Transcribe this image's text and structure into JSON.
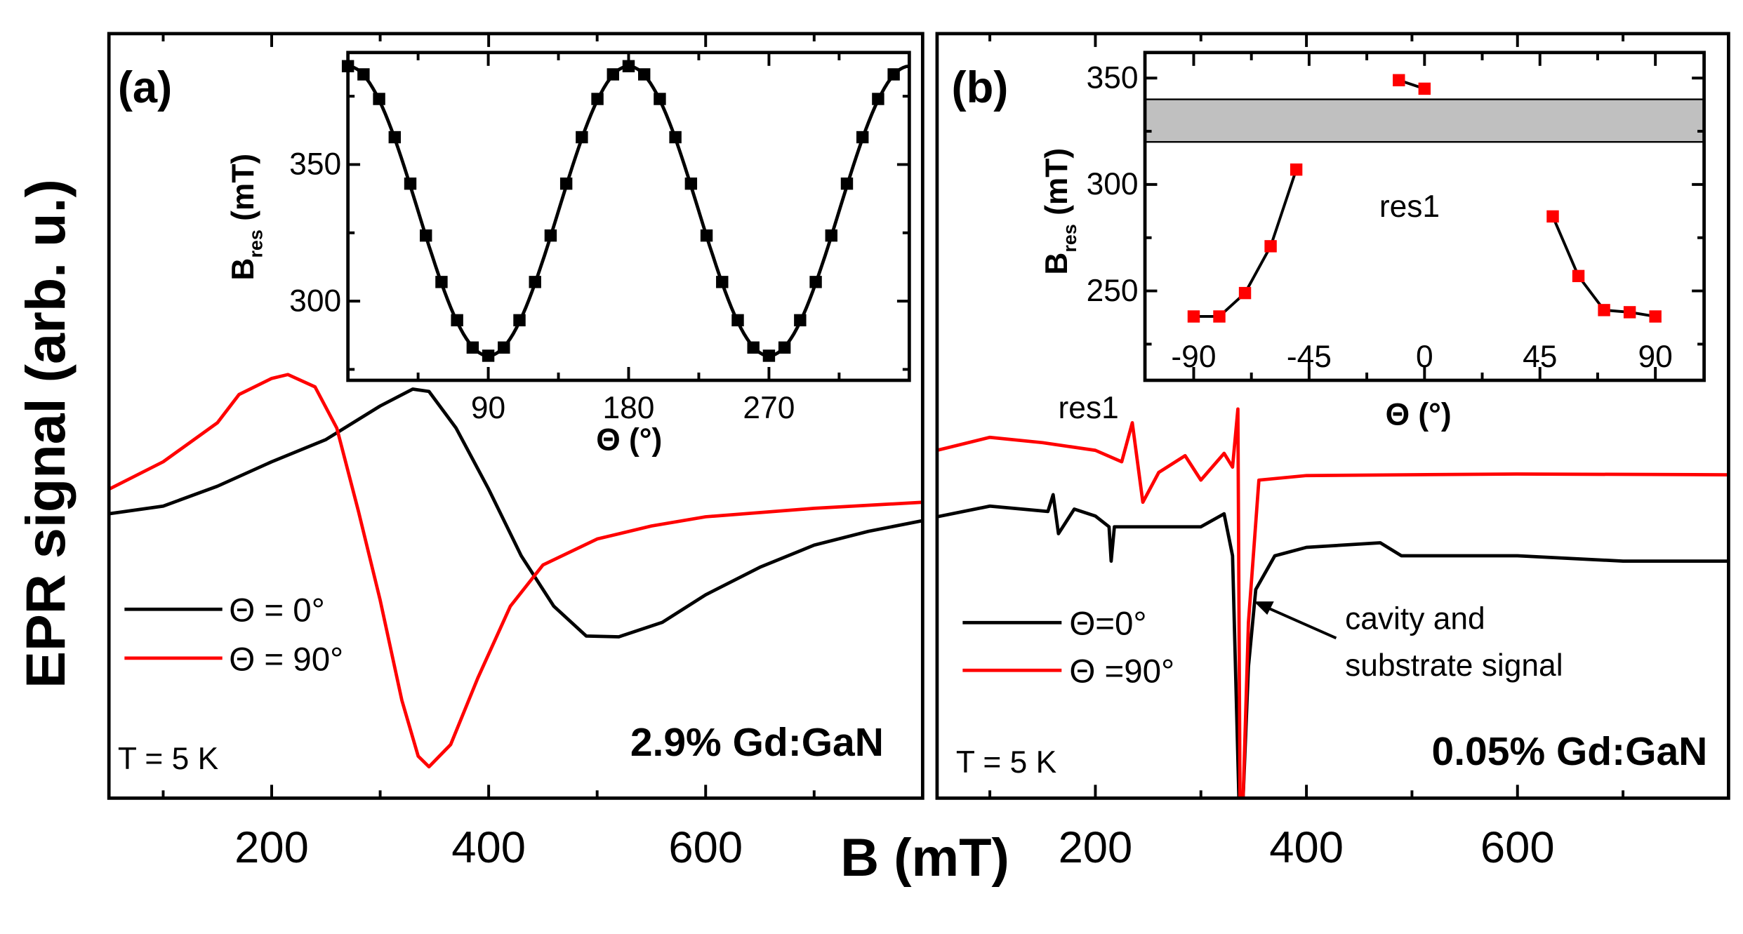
{
  "figure": {
    "ylabel": "EPR signal (arb. u.)",
    "xlabel": "B (mT)"
  },
  "chart_data": [
    {
      "id": "a-main",
      "type": "line",
      "panel_label": "(a)",
      "xlabel": "B (mT)",
      "ylabel": "EPR signal (arb. u.)",
      "xlim": [
        50,
        800
      ],
      "ylim": [
        0,
        100
      ],
      "xticks": [
        200,
        400,
        600
      ],
      "xminor": [
        100,
        300,
        500,
        700
      ],
      "annotations": {
        "temperature": "T = 5 K",
        "sample": "2.9% Gd:GaN"
      },
      "legend_position": "lower-left",
      "series": [
        {
          "name": "Θ = 0°",
          "color": "#000000",
          "x": [
            50,
            100,
            150,
            200,
            250,
            300,
            330,
            345,
            370,
            400,
            430,
            460,
            490,
            520,
            560,
            600,
            650,
            700,
            750,
            800
          ],
          "y": [
            37.2,
            38.2,
            40.8,
            44.0,
            46.9,
            51.3,
            53.5,
            53.2,
            48.4,
            40.4,
            31.7,
            25.1,
            21.2,
            21.1,
            23.0,
            26.6,
            30.2,
            33.1,
            34.9,
            36.3
          ]
        },
        {
          "name": "Θ = 90°",
          "color": "#ff0000",
          "x": [
            50,
            100,
            150,
            170,
            200,
            215,
            240,
            260,
            280,
            300,
            320,
            335,
            345,
            365,
            390,
            420,
            450,
            500,
            550,
            600,
            700,
            800
          ],
          "y": [
            40.4,
            44.0,
            49.1,
            52.8,
            54.9,
            55.4,
            53.8,
            48.4,
            37.5,
            25.9,
            12.8,
            5.5,
            4.1,
            7.0,
            15.7,
            25.1,
            30.5,
            33.9,
            35.6,
            36.8,
            37.9,
            38.7
          ]
        }
      ]
    },
    {
      "id": "a-inset",
      "type": "scatter",
      "xlabel": "Θ (°)",
      "ylabel_main": "B",
      "ylabel_sub": "res",
      "ylabel_unit": " (mT)",
      "xlim": [
        0,
        360
      ],
      "ylim": [
        271,
        391
      ],
      "xticks": [
        90,
        180,
        270
      ],
      "xminor": [
        45,
        135,
        225,
        315
      ],
      "yticks": [
        300,
        350
      ],
      "yminor": [
        275,
        325,
        375
      ],
      "fit": {
        "model": "B = 333 + 53·cos(2Θ)",
        "color": "#000000"
      },
      "points": {
        "x": [
          0,
          10,
          20,
          30,
          40,
          50,
          60,
          70,
          80,
          90,
          100,
          110,
          120,
          130,
          140,
          150,
          160,
          170,
          180,
          190,
          200,
          210,
          220,
          230,
          240,
          250,
          260,
          270,
          280,
          290,
          300,
          310,
          320,
          330,
          340,
          350
        ],
        "y": [
          386,
          383,
          374,
          360,
          343,
          324,
          307,
          293,
          283,
          280,
          283,
          293,
          307,
          324,
          343,
          360,
          374,
          383,
          386,
          383,
          374,
          360,
          343,
          324,
          307,
          293,
          283,
          280,
          283,
          293,
          307,
          324,
          343,
          360,
          374,
          383
        ]
      }
    },
    {
      "id": "b-main",
      "type": "line",
      "panel_label": "(b)",
      "xlabel": "B (mT)",
      "xlim": [
        50,
        800
      ],
      "ylim": [
        0,
        100
      ],
      "xticks": [
        200,
        400,
        600
      ],
      "xminor": [
        100,
        300,
        500,
        700
      ],
      "annotations": {
        "temperature": "T = 5 K",
        "sample": "0.05% Gd:GaN",
        "res_label": "res1",
        "arrow_label_1": "cavity and",
        "arrow_label_2": "substrate signal"
      },
      "legend_position": "lower-left",
      "series": [
        {
          "name": "Θ=0°",
          "color": "#000000",
          "x": [
            50,
            100,
            155,
            160,
            165,
            180,
            200,
            213,
            215,
            218,
            300,
            322,
            330,
            336,
            340,
            345,
            352,
            370,
            400,
            470,
            490,
            600,
            700,
            800
          ],
          "y": [
            36.8,
            38.2,
            37.5,
            39.7,
            34.6,
            37.8,
            36.9,
            35.5,
            31.0,
            35.5,
            35.5,
            37.2,
            31.7,
            0,
            0,
            17.2,
            27.3,
            31.7,
            32.8,
            33.4,
            31.7,
            31.7,
            31.0,
            31.0
          ]
        },
        {
          "name": "Θ =90°",
          "color": "#ff0000",
          "x": [
            50,
            100,
            150,
            200,
            225,
            235,
            245,
            260,
            285,
            300,
            322,
            330,
            335,
            337,
            340,
            345,
            355,
            400,
            600,
            800
          ],
          "y": [
            45.5,
            47.2,
            46.5,
            45.5,
            44.0,
            49.1,
            38.7,
            42.6,
            44.8,
            41.6,
            45.1,
            43.3,
            50.9,
            0,
            0,
            23,
            41.6,
            42.2,
            42.4,
            42.3
          ]
        }
      ]
    },
    {
      "id": "b-inset",
      "type": "scatter",
      "xlabel": "Θ (°)",
      "ylabel_main": "B",
      "ylabel_sub": "res",
      "ylabel_unit": " (mT)",
      "xlim": [
        -109,
        109
      ],
      "ylim": [
        208,
        362
      ],
      "xticks": [
        -90,
        -45,
        0,
        45,
        90
      ],
      "xminor": [
        -67.5,
        -22.5,
        22.5,
        67.5
      ],
      "yticks": [
        250,
        300,
        350
      ],
      "yminor": [
        225,
        275,
        325
      ],
      "band": {
        "from": 320,
        "to": 340,
        "color": "#c0c0c0"
      },
      "label": "res1",
      "point_color": "#ff0000",
      "groups": [
        {
          "x": [
            -90,
            -80,
            -70,
            -60,
            -50
          ],
          "y": [
            238,
            238,
            249,
            271,
            307
          ]
        },
        {
          "x": [
            -10,
            0
          ],
          "y": [
            349,
            345
          ]
        },
        {
          "x": [
            50,
            60,
            70,
            80,
            90
          ],
          "y": [
            285,
            257,
            241,
            240,
            238
          ]
        }
      ]
    }
  ]
}
